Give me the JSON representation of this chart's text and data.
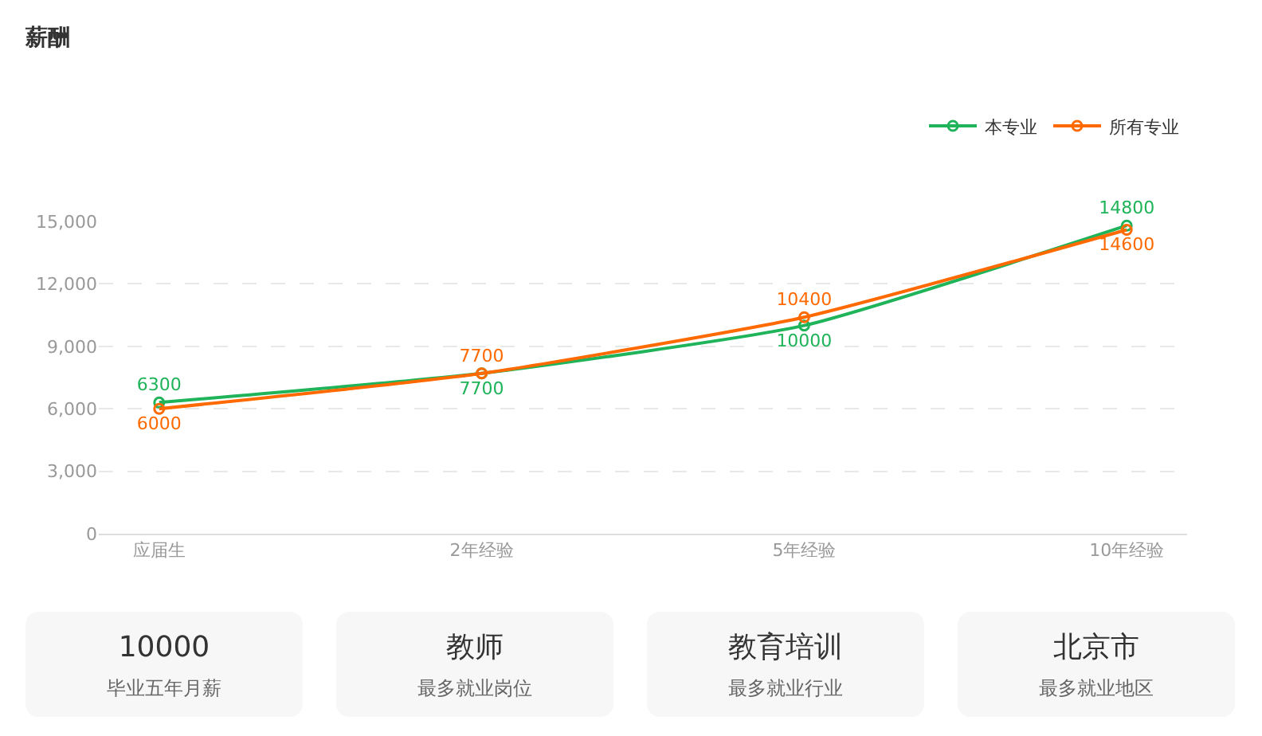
{
  "chart_data": [
    {
      "type": "line",
      "title": "薪酬",
      "categories": [
        "应届生",
        "2年经验",
        "5年经验",
        "10年经验"
      ],
      "series": [
        {
          "name": "本专业",
          "color": "#1fb35a",
          "values": [
            6300,
            7700,
            10000,
            14800
          ]
        },
        {
          "name": "所有专业",
          "color": "#ff6a00",
          "values": [
            6000,
            7700,
            10400,
            14600
          ]
        }
      ],
      "ylim": [
        0,
        15000
      ],
      "yticks": [
        0,
        {
          "value": 3000,
          "label": "3,000"
        },
        {
          "value": 6000,
          "label": "6,000"
        },
        {
          "value": 9000,
          "label": "9,000"
        },
        {
          "value": 12000,
          "label": "12,000"
        },
        {
          "value": 15000,
          "label": "15,000"
        }
      ],
      "grid": "y",
      "legend": "top right",
      "marker": "circle",
      "line_style": "solid",
      "data_labels": true
    },
    {
      "type": "other",
      "annotations": [
        "10000",
        "毕业五年月薪",
        "教师",
        "最多就业岗位",
        "教育培训",
        "最多就业行业",
        "北京市",
        "最多就业地区"
      ]
    }
  ]
}
